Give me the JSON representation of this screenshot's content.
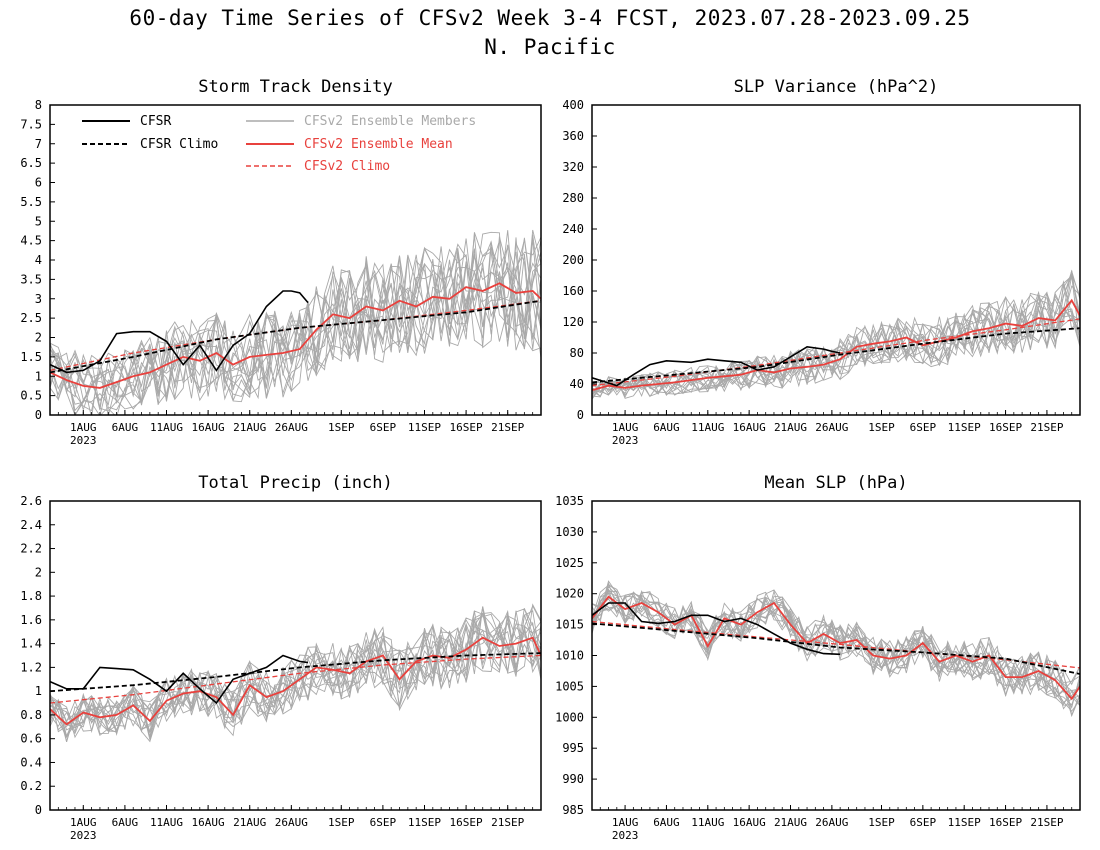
{
  "title": "60-day Time Series of CFSv2 Week 3-4 FCST, 2023.07.28-2023.09.25",
  "subtitle": "N. Pacific",
  "colors": {
    "obs": "#000000",
    "members": "#a9a9a9",
    "mean": "#e8413d",
    "cfsv2_climo": "#e8413d"
  },
  "legend": {
    "cfsr": "CFSR",
    "cfsr_climo": "CFSR Climo",
    "members": "CFSv2 Ensemble Members",
    "mean": "CFSv2 Ensemble Mean",
    "cfsv2_climo": "CFSv2 Climo"
  },
  "x_ticks": [
    "1AUG",
    "6AUG",
    "11AUG",
    "16AUG",
    "21AUG",
    "26AUG",
    "1SEP",
    "6SEP",
    "11SEP",
    "16SEP",
    "21SEP"
  ],
  "x_year": "2023",
  "chart_data": [
    {
      "type": "line",
      "title": "Storm Track Density",
      "x_dates": [
        "2023-07-28",
        "2023-09-25"
      ],
      "ylim": [
        0,
        8
      ],
      "yticks": [
        "0",
        "0.5",
        "1",
        "1.5",
        "2",
        "2.5",
        "3",
        "3.5",
        "4",
        "4.5",
        "5",
        "5.5",
        "6",
        "6.5",
        "7",
        "7.5",
        "8"
      ],
      "grid": false,
      "legend_position": "top-left",
      "series": [
        {
          "name": "CFSR",
          "style": "obs",
          "x": [
            0,
            2,
            4,
            6,
            8,
            10,
            12,
            14,
            16,
            18,
            20,
            22,
            24,
            26,
            28,
            29,
            30,
            31
          ],
          "values": [
            1.3,
            1.1,
            1.15,
            1.4,
            2.1,
            2.15,
            2.15,
            1.9,
            1.3,
            1.8,
            1.15,
            1.8,
            2.1,
            2.8,
            3.2,
            3.2,
            3.15,
            2.9
          ]
        },
        {
          "name": "CFSR Climo",
          "style": "obs_climo",
          "x": [
            0,
            10,
            20,
            30,
            40,
            50,
            59
          ],
          "values": [
            1.1,
            1.5,
            1.95,
            2.25,
            2.45,
            2.65,
            2.95
          ]
        },
        {
          "name": "CFSv2 Ensemble Mean",
          "style": "mean",
          "x": [
            0,
            2,
            4,
            6,
            8,
            10,
            12,
            14,
            16,
            18,
            20,
            22,
            24,
            26,
            28,
            30,
            32,
            34,
            36,
            38,
            40,
            42,
            44,
            46,
            48,
            50,
            52,
            54,
            56,
            58,
            59
          ],
          "values": [
            1.1,
            0.9,
            0.75,
            0.7,
            0.85,
            1.0,
            1.1,
            1.3,
            1.5,
            1.4,
            1.6,
            1.3,
            1.5,
            1.55,
            1.6,
            1.7,
            2.2,
            2.6,
            2.5,
            2.8,
            2.7,
            2.95,
            2.8,
            3.05,
            3.0,
            3.3,
            3.2,
            3.4,
            3.15,
            3.2,
            3.0
          ]
        },
        {
          "name": "CFSv2 Climo",
          "style": "model_climo",
          "x": [
            0,
            10,
            20,
            30,
            40,
            50,
            59
          ],
          "values": [
            1.15,
            1.6,
            1.95,
            2.25,
            2.45,
            2.7,
            2.95
          ]
        }
      ],
      "members": {
        "count": 16,
        "spread": [
          0.8,
          1.6
        ]
      }
    },
    {
      "type": "line",
      "title": "SLP Variance (hPa^2)",
      "x_dates": [
        "2023-07-28",
        "2023-09-25"
      ],
      "ylim": [
        0,
        400
      ],
      "yticks": [
        "0",
        "40",
        "80",
        "120",
        "160",
        "200",
        "240",
        "280",
        "320",
        "360",
        "400"
      ],
      "grid": false,
      "series": [
        {
          "name": "CFSR",
          "style": "obs",
          "x": [
            0,
            3,
            5,
            7,
            9,
            12,
            14,
            16,
            18,
            20,
            22,
            24,
            26,
            28,
            29,
            30
          ],
          "values": [
            48,
            38,
            52,
            65,
            70,
            68,
            72,
            70,
            68,
            58,
            62,
            75,
            88,
            85,
            82,
            80
          ]
        },
        {
          "name": "CFSR Climo",
          "style": "obs_climo",
          "x": [
            0,
            10,
            20,
            30,
            40,
            50,
            59
          ],
          "values": [
            42,
            52,
            62,
            78,
            92,
            105,
            112
          ]
        },
        {
          "name": "CFSv2 Ensemble Mean",
          "style": "mean",
          "x": [
            0,
            2,
            4,
            6,
            8,
            10,
            12,
            14,
            16,
            18,
            20,
            22,
            24,
            26,
            28,
            30,
            32,
            34,
            36,
            38,
            40,
            42,
            44,
            46,
            48,
            50,
            52,
            54,
            56,
            58,
            59
          ],
          "values": [
            32,
            38,
            35,
            38,
            40,
            42,
            45,
            48,
            50,
            52,
            58,
            55,
            60,
            62,
            65,
            72,
            88,
            92,
            95,
            100,
            90,
            95,
            100,
            108,
            112,
            118,
            115,
            125,
            122,
            148,
            128
          ]
        },
        {
          "name": "CFSv2 Climo",
          "style": "model_climo",
          "x": [
            0,
            10,
            20,
            30,
            40,
            50,
            59
          ],
          "values": [
            38,
            50,
            64,
            80,
            96,
            110,
            124
          ]
        }
      ],
      "members": {
        "count": 16,
        "spread": [
          12,
          40
        ]
      }
    },
    {
      "type": "line",
      "title": "Total Precip (inch)",
      "x_dates": [
        "2023-07-28",
        "2023-09-25"
      ],
      "ylim": [
        0,
        2.6
      ],
      "yticks": [
        "0",
        "0.2",
        "0.4",
        "0.6",
        "0.8",
        "1",
        "1.2",
        "1.4",
        "1.6",
        "1.8",
        "2",
        "2.2",
        "2.4",
        "2.6"
      ],
      "grid": false,
      "series": [
        {
          "name": "CFSR",
          "style": "obs",
          "x": [
            0,
            2,
            4,
            6,
            8,
            10,
            12,
            14,
            16,
            18,
            20,
            22,
            24,
            26,
            28,
            30,
            31
          ],
          "values": [
            1.08,
            1.02,
            1.02,
            1.2,
            1.19,
            1.18,
            1.1,
            1.0,
            1.15,
            1.02,
            0.9,
            1.1,
            1.15,
            1.2,
            1.3,
            1.25,
            1.24
          ]
        },
        {
          "name": "CFSR Climo",
          "style": "obs_climo",
          "x": [
            0,
            10,
            20,
            30,
            40,
            50,
            59
          ],
          "values": [
            1.0,
            1.05,
            1.12,
            1.2,
            1.26,
            1.3,
            1.32
          ]
        },
        {
          "name": "CFSv2 Ensemble Mean",
          "style": "mean",
          "x": [
            0,
            2,
            4,
            6,
            8,
            10,
            12,
            14,
            16,
            18,
            20,
            22,
            24,
            26,
            28,
            30,
            32,
            34,
            36,
            38,
            40,
            42,
            44,
            46,
            48,
            50,
            52,
            54,
            56,
            58,
            59
          ],
          "values": [
            0.85,
            0.72,
            0.82,
            0.78,
            0.8,
            0.88,
            0.75,
            0.92,
            0.98,
            1.0,
            0.95,
            0.8,
            1.05,
            0.95,
            1.0,
            1.1,
            1.2,
            1.18,
            1.15,
            1.25,
            1.3,
            1.1,
            1.25,
            1.3,
            1.28,
            1.35,
            1.45,
            1.38,
            1.4,
            1.45,
            1.3
          ]
        },
        {
          "name": "CFSv2 Climo",
          "style": "model_climo",
          "x": [
            0,
            10,
            20,
            30,
            40,
            50,
            59
          ],
          "values": [
            0.9,
            0.97,
            1.06,
            1.15,
            1.22,
            1.27,
            1.3
          ]
        }
      ],
      "members": {
        "count": 16,
        "spread": [
          0.15,
          0.3
        ]
      }
    },
    {
      "type": "line",
      "title": "Mean SLP (hPa)",
      "x_dates": [
        "2023-07-28",
        "2023-09-25"
      ],
      "ylim": [
        985,
        1035
      ],
      "yticks": [
        "985",
        "990",
        "995",
        "1000",
        "1005",
        "1010",
        "1015",
        "1020",
        "1025",
        "1030",
        "1035"
      ],
      "grid": false,
      "series": [
        {
          "name": "CFSR",
          "style": "obs",
          "x": [
            0,
            2,
            4,
            6,
            8,
            10,
            12,
            14,
            16,
            18,
            20,
            22,
            24,
            26,
            28,
            30
          ],
          "values": [
            1016.5,
            1018.5,
            1018.5,
            1015.5,
            1015.2,
            1015.5,
            1016.5,
            1016.5,
            1015.5,
            1016.0,
            1015.0,
            1013.5,
            1012.0,
            1011.0,
            1010.3,
            1010.2
          ]
        },
        {
          "name": "CFSR Climo",
          "style": "obs_climo",
          "x": [
            0,
            10,
            20,
            30,
            40,
            50,
            59
          ],
          "values": [
            1015.2,
            1014.0,
            1012.8,
            1011.3,
            1010.5,
            1009.5,
            1007.0
          ]
        },
        {
          "name": "CFSv2 Ensemble Mean",
          "style": "mean",
          "x": [
            0,
            2,
            4,
            6,
            8,
            10,
            12,
            14,
            16,
            18,
            20,
            22,
            24,
            26,
            28,
            30,
            32,
            34,
            36,
            38,
            40,
            42,
            44,
            46,
            48,
            50,
            52,
            54,
            56,
            58,
            59
          ],
          "values": [
            1016,
            1019.5,
            1017.5,
            1018.5,
            1017,
            1015,
            1016.5,
            1011.5,
            1016,
            1015,
            1017,
            1018.5,
            1015,
            1012,
            1013.5,
            1012,
            1012.5,
            1010,
            1009.5,
            1010,
            1012,
            1009,
            1010,
            1009,
            1010,
            1006.5,
            1006.5,
            1007.5,
            1006,
            1003,
            1005
          ]
        },
        {
          "name": "CFSv2 Climo",
          "style": "model_climo",
          "x": [
            0,
            10,
            20,
            30,
            40,
            50,
            59
          ],
          "values": [
            1015.5,
            1014.2,
            1013.0,
            1011.8,
            1010.5,
            1009.3,
            1008.0
          ]
        }
      ],
      "members": {
        "count": 16,
        "spread": [
          2.5,
          3.5
        ]
      }
    }
  ]
}
